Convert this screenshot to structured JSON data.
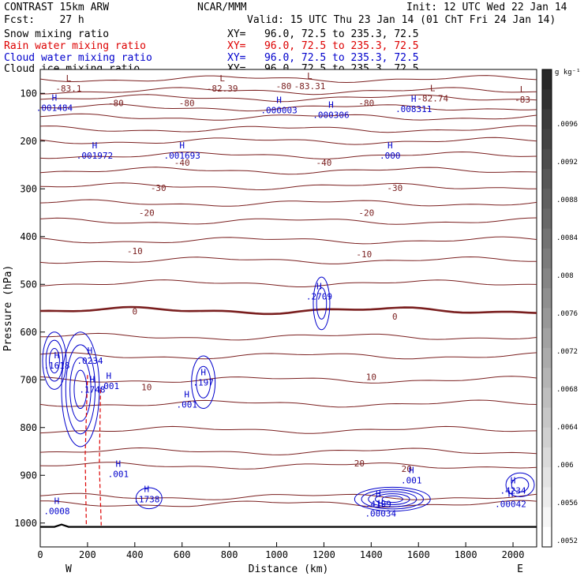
{
  "header": {
    "left1": "CONTRAST 15km ARW",
    "center1": "NCAR/MMM",
    "right1": "Init: 12 UTC Wed 22 Jan 14",
    "left2": "Fcst:    27 h",
    "right2": "Valid: 15 UTC Thu 23 Jan 14 (01 ChT Fri 24 Jan 14)",
    "fields": [
      {
        "name": "Snow mixing ratio",
        "xy": "XY=   96.0, 72.5 to 235.3, 72.5",
        "color": "#000000"
      },
      {
        "name": "Rain water mixing ratio",
        "xy": "XY=   96.0, 72.5 to 235.3, 72.5",
        "color": "#dd0000"
      },
      {
        "name": "Cloud water mixing ratio",
        "xy": "XY=   96.0, 72.5 to 235.3, 72.5",
        "color": "#0000cc"
      },
      {
        "name": "Cloud ice mixing ratio",
        "xy": "XY=   96.0, 72.5 to 235.3, 72.5",
        "color": "#000000"
      }
    ]
  },
  "chart_data": {
    "type": "cross-section contour",
    "xlabel": "Distance (km)",
    "ylabel": "Pressure (hPa)",
    "xlim": [
      0,
      2100
    ],
    "ylim": [
      1050,
      50
    ],
    "xticks": [
      0,
      200,
      400,
      600,
      800,
      1000,
      1200,
      1400,
      1600,
      1800,
      2000
    ],
    "yticks": [
      100,
      200,
      300,
      400,
      500,
      600,
      700,
      800,
      900,
      1000
    ],
    "x_end_labels": {
      "left": "W",
      "right": "E"
    },
    "colorbar": {
      "unit": "g kg⁻¹",
      "labels": [
        ".0096",
        ".0092",
        ".0088",
        ".0084",
        ".008",
        ".0076",
        ".0072",
        ".0068",
        ".0064",
        ".006",
        ".0056",
        ".0052"
      ]
    },
    "isotherms_labels": [
      {
        "x": 600,
        "p": 245,
        "text": "-40"
      },
      {
        "x": 1200,
        "p": 245,
        "text": "-40"
      },
      {
        "x": 500,
        "p": 298,
        "text": "-30"
      },
      {
        "x": 1500,
        "p": 298,
        "text": "-30"
      },
      {
        "x": 450,
        "p": 350,
        "text": "-20"
      },
      {
        "x": 1380,
        "p": 350,
        "text": "-20"
      },
      {
        "x": 400,
        "p": 430,
        "text": "-10"
      },
      {
        "x": 1370,
        "p": 437,
        "text": "-10"
      },
      {
        "x": 400,
        "p": 557,
        "text": "0"
      },
      {
        "x": 1500,
        "p": 567,
        "text": "0"
      },
      {
        "x": 450,
        "p": 715,
        "text": "10"
      },
      {
        "x": 1400,
        "p": 694,
        "text": "10"
      },
      {
        "x": 1350,
        "p": 875,
        "text": "20"
      },
      {
        "x": 1550,
        "p": 886,
        "text": "20"
      },
      {
        "x": 320,
        "p": 120,
        "text": "-80"
      },
      {
        "x": 620,
        "p": 120,
        "text": "-80"
      },
      {
        "x": 1030,
        "p": 85,
        "text": "-80"
      },
      {
        "x": 1380,
        "p": 120,
        "text": "-80"
      }
    ],
    "highs_lows": [
      {
        "type": "L",
        "x": 120,
        "p": 85,
        "value": "-83.1"
      },
      {
        "type": "L",
        "x": 770,
        "p": 85,
        "value": "-82.39"
      },
      {
        "type": "L",
        "x": 1140,
        "p": 80,
        "value": "-83.31"
      },
      {
        "type": "L",
        "x": 1660,
        "p": 105,
        "value": "-82.74"
      },
      {
        "type": "L",
        "x": 2040,
        "p": 108,
        "value": "-83"
      },
      {
        "type": "H",
        "x": 60,
        "p": 125,
        "value": ".001484"
      },
      {
        "type": "H",
        "x": 1010,
        "p": 130,
        "value": ".000003"
      },
      {
        "type": "H",
        "x": 1230,
        "p": 140,
        "value": ".000306"
      },
      {
        "type": "H",
        "x": 1580,
        "p": 128,
        "value": ".008311"
      },
      {
        "type": "H",
        "x": 230,
        "p": 225,
        "value": ".001972"
      },
      {
        "type": "H",
        "x": 600,
        "p": 225,
        "value": ".001693"
      },
      {
        "type": "H",
        "x": 1480,
        "p": 225,
        "value": ".000"
      },
      {
        "type": "H",
        "x": 1180,
        "p": 520,
        "value": ".2709"
      },
      {
        "type": "H",
        "x": 70,
        "p": 665,
        "value": ".1618"
      },
      {
        "type": "H",
        "x": 210,
        "p": 655,
        "value": ".0234"
      },
      {
        "type": "H",
        "x": 220,
        "p": 715,
        "value": ".1748"
      },
      {
        "type": "H",
        "x": 690,
        "p": 700,
        "value": ".197"
      },
      {
        "type": "H",
        "x": 620,
        "p": 747,
        "value": ".001"
      },
      {
        "type": "H",
        "x": 290,
        "p": 708,
        "value": ".001"
      },
      {
        "type": "H",
        "x": 450,
        "p": 945,
        "value": ".1738"
      },
      {
        "type": "H",
        "x": 70,
        "p": 970,
        "value": ".0008"
      },
      {
        "type": "H",
        "x": 1430,
        "p": 955,
        "value": ".4199"
      },
      {
        "type": "H",
        "x": 1440,
        "p": 975,
        "value": ".00034"
      },
      {
        "type": "H",
        "x": 2000,
        "p": 927,
        "value": ".4234"
      },
      {
        "type": "H",
        "x": 1990,
        "p": 955,
        "value": ".00042"
      },
      {
        "type": "H",
        "x": 1570,
        "p": 905,
        "value": ".001"
      },
      {
        "type": "H",
        "x": 330,
        "p": 892,
        "value": ".001"
      }
    ]
  }
}
